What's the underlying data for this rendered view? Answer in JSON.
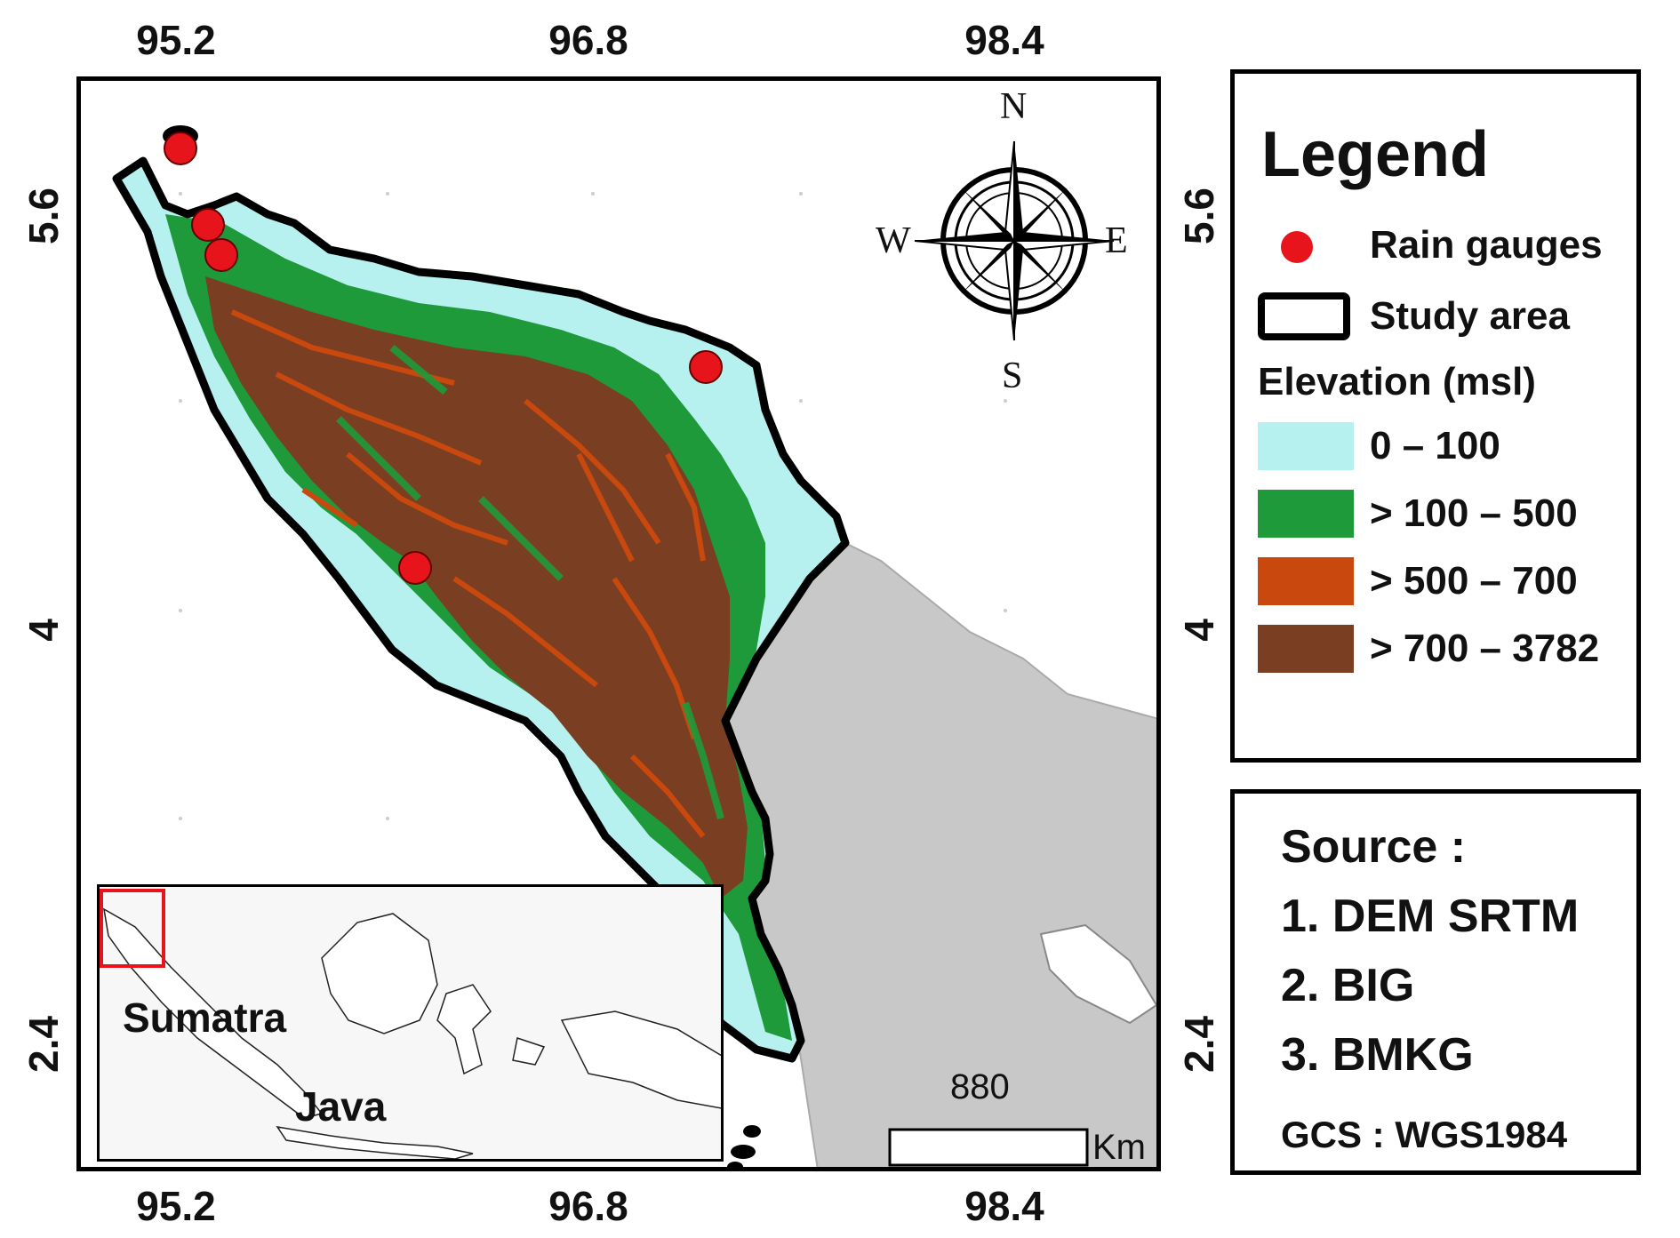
{
  "axes": {
    "top_ticks": [
      "95.2",
      "96.8",
      "98.4"
    ],
    "bottom_ticks": [
      "95.2",
      "96.8",
      "98.4"
    ],
    "left_ticks": [
      "5.6",
      "4",
      "2.4"
    ],
    "right_ticks": [
      "5.6",
      "4",
      "2.4"
    ]
  },
  "compass": {
    "n": "N",
    "s": "S",
    "e": "E",
    "w": "W"
  },
  "legend": {
    "title": "Legend",
    "rain_gauges": "Rain gauges",
    "study_area": "Study area",
    "elevation_title": "Elevation (msl)",
    "classes": [
      {
        "label": "0 – 100",
        "color": "#b6f1f0"
      },
      {
        "label": "> 100 – 500",
        "color": "#1e9a3a"
      },
      {
        "label": "> 500 – 700",
        "color": "#c8480e"
      },
      {
        "label": "> 700 – 3782",
        "color": "#7a3f22"
      }
    ],
    "gauge_color": "#e8141c"
  },
  "source": {
    "title": "Source :",
    "items": [
      "1. DEM SRTM",
      "2. BIG",
      "3. BMKG"
    ],
    "gcs": "GCS : WGS1984"
  },
  "inset": {
    "label_sumatra": "Sumatra",
    "label_java": "Java"
  },
  "scale": {
    "value": "880",
    "unit": "Km"
  },
  "colors": {
    "neighbor_land": "#c8c8c8",
    "frame": "#000000"
  }
}
